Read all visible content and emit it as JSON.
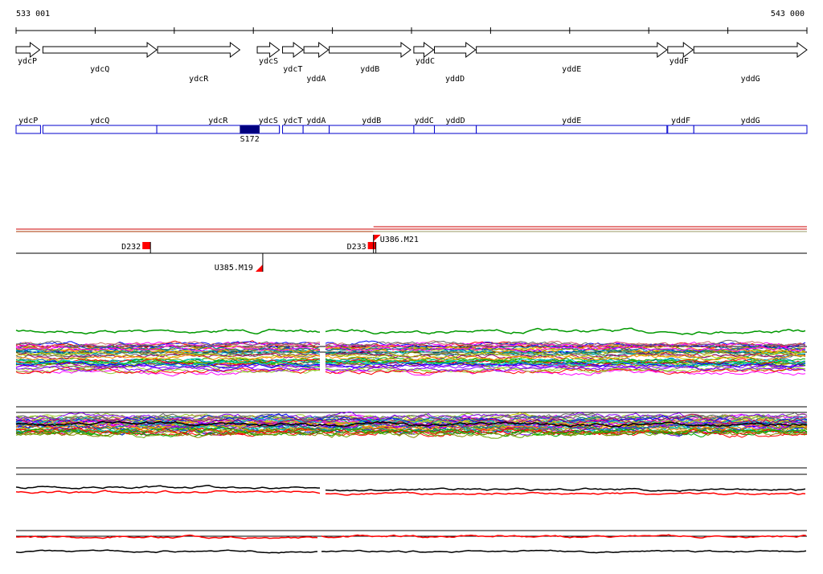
{
  "coords": {
    "start": "533 001",
    "end": "543 000"
  },
  "colors": {
    "gene_outline": "#000000",
    "operon_box": "#0000cc",
    "promoter_fill": "#000080",
    "feature_red": "#ff0000",
    "upper_track": "#cc0000",
    "upper_track_2": "#aa3300"
  },
  "genes": [
    {
      "name": "ydcP",
      "start": 533001,
      "end": 533300,
      "row": "upper"
    },
    {
      "name": "ydcQ",
      "start": 533340,
      "end": 534780,
      "row": "lower"
    },
    {
      "name": "ydcR",
      "start": 534790,
      "end": 535830,
      "row": "lower2"
    },
    {
      "name": "ydcS",
      "start": 536050,
      "end": 536330,
      "row": "upper"
    },
    {
      "name": "ydcT",
      "start": 536370,
      "end": 536630,
      "row": "lower"
    },
    {
      "name": "yddA",
      "start": 536640,
      "end": 536950,
      "row": "lower2"
    },
    {
      "name": "yddB",
      "start": 536960,
      "end": 537990,
      "row": "lower"
    },
    {
      "name": "yddC",
      "start": 538030,
      "end": 538280,
      "row": "upper"
    },
    {
      "name": "yddD",
      "start": 538290,
      "end": 538810,
      "row": "lower2"
    },
    {
      "name": "yddE",
      "start": 538820,
      "end": 541230,
      "row": "lower"
    },
    {
      "name": "yddF",
      "start": 541240,
      "end": 541560,
      "row": "upper"
    },
    {
      "name": "yddG",
      "start": 541570,
      "end": 543000,
      "row": "lower2"
    }
  ],
  "operons": [
    {
      "name": "ydcP",
      "start": 533001,
      "end": 533310
    },
    {
      "name": "ydcQ",
      "start": 533340,
      "end": 534780
    },
    {
      "name": "ydcR",
      "start": 534780,
      "end": 536330
    },
    {
      "name": "ydcS",
      "start": 536050,
      "end": 536330
    },
    {
      "name": "ydcT",
      "start": 536370,
      "end": 536630
    },
    {
      "name": "yddA",
      "start": 536630,
      "end": 536960
    },
    {
      "name": "yddB",
      "start": 536960,
      "end": 538030
    },
    {
      "name": "yddC",
      "start": 538030,
      "end": 538290
    },
    {
      "name": "yddD",
      "start": 538290,
      "end": 538820
    },
    {
      "name": "yddE",
      "start": 538820,
      "end": 541230
    },
    {
      "name": "yddF",
      "start": 541240,
      "end": 541570
    },
    {
      "name": "yddG",
      "start": 541570,
      "end": 543000
    }
  ],
  "promoters": [
    {
      "name": "S172",
      "start": 535830,
      "end": 536080
    }
  ],
  "features": [
    {
      "name": "D232",
      "pos": 534700,
      "type": "box"
    },
    {
      "name": "D233",
      "pos": 537550,
      "type": "box"
    },
    {
      "name": "U386.M21",
      "pos": 537520,
      "type": "flag-up"
    },
    {
      "name": "U385.M19",
      "pos": 536120,
      "type": "flag-down"
    }
  ]
}
